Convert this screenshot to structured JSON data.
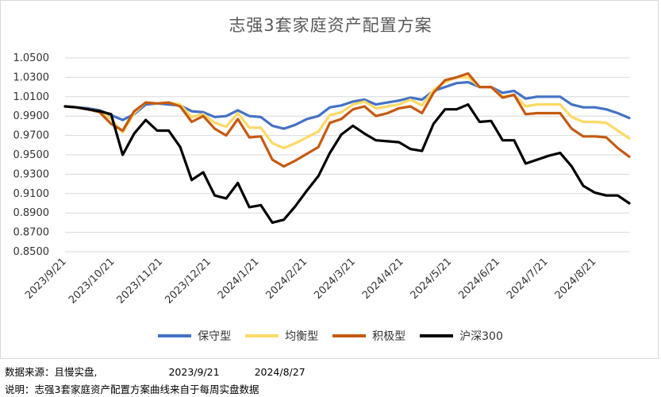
{
  "chart_data": {
    "type": "line",
    "title": "志强3套家庭资产配置方案",
    "ylim": [
      0.85,
      1.05
    ],
    "yticks": [
      "1.0500",
      "1.0300",
      "1.0100",
      "0.9900",
      "0.9700",
      "0.9500",
      "0.9300",
      "0.9100",
      "0.8900",
      "0.8700",
      "0.8500"
    ],
    "yticks_values": [
      1.05,
      1.03,
      1.01,
      0.99,
      0.97,
      0.95,
      0.93,
      0.91,
      0.89,
      0.87,
      0.85
    ],
    "xticks": [
      "2023/9/21",
      "2023/10/21",
      "2023/11/21",
      "2023/12/21",
      "2024/1/21",
      "2024/2/21",
      "2024/3/21",
      "2024/4/21",
      "2024/5/21",
      "2024/6/21",
      "2024/7/21",
      "2024/8/21"
    ],
    "grid": true,
    "legend_position": "bottom",
    "series": [
      {
        "name": "保守型",
        "color": "#4472C4",
        "values": [
          1.0,
          0.999,
          0.998,
          0.996,
          0.991,
          0.986,
          0.992,
          1.002,
          1.003,
          1.002,
          1.001,
          0.995,
          0.994,
          0.989,
          0.99,
          0.996,
          0.99,
          0.989,
          0.98,
          0.977,
          0.981,
          0.987,
          0.99,
          0.999,
          1.001,
          1.005,
          1.007,
          1.002,
          1.004,
          1.006,
          1.009,
          1.007,
          1.016,
          1.02,
          1.024,
          1.025,
          1.02,
          1.02,
          1.014,
          1.016,
          1.008,
          1.01,
          1.01,
          1.01,
          1.002,
          0.999,
          0.999,
          0.997,
          0.993,
          0.988
        ]
      },
      {
        "name": "均衡型",
        "color": "#FFD966",
        "values": [
          1.0,
          0.999,
          0.997,
          0.995,
          0.987,
          0.973,
          0.993,
          1.004,
          1.003,
          1.004,
          1.002,
          0.989,
          0.992,
          0.983,
          0.979,
          0.993,
          0.978,
          0.978,
          0.962,
          0.957,
          0.962,
          0.968,
          0.974,
          0.991,
          0.994,
          1.002,
          1.005,
          0.998,
          1.0,
          1.002,
          1.007,
          1.001,
          1.017,
          1.025,
          1.03,
          1.03,
          1.02,
          1.02,
          1.01,
          1.012,
          1.0,
          1.002,
          1.002,
          1.002,
          0.989,
          0.984,
          0.984,
          0.983,
          0.975,
          0.967
        ]
      },
      {
        "name": "积极型",
        "color": "#C55A11",
        "values": [
          1.0,
          0.999,
          0.997,
          0.994,
          0.982,
          0.975,
          0.995,
          1.004,
          1.003,
          1.004,
          1.0,
          0.984,
          0.99,
          0.977,
          0.97,
          0.987,
          0.968,
          0.969,
          0.945,
          0.938,
          0.944,
          0.951,
          0.958,
          0.983,
          0.987,
          0.997,
          1.0,
          0.99,
          0.993,
          0.998,
          1.0,
          0.993,
          1.014,
          1.027,
          1.03,
          1.034,
          1.02,
          1.02,
          1.009,
          1.012,
          0.992,
          0.993,
          0.993,
          0.993,
          0.977,
          0.969,
          0.969,
          0.968,
          0.957,
          0.948
        ]
      },
      {
        "name": "沪深300",
        "color": "#000000",
        "values": [
          1.0,
          0.999,
          0.997,
          0.995,
          0.992,
          0.95,
          0.972,
          0.986,
          0.975,
          0.975,
          0.958,
          0.924,
          0.932,
          0.908,
          0.905,
          0.921,
          0.896,
          0.898,
          0.88,
          0.883,
          0.897,
          0.913,
          0.928,
          0.952,
          0.971,
          0.98,
          0.972,
          0.965,
          0.964,
          0.963,
          0.956,
          0.954,
          0.982,
          0.997,
          0.997,
          1.002,
          0.984,
          0.985,
          0.965,
          0.965,
          0.941,
          0.945,
          0.949,
          0.952,
          0.938,
          0.918,
          0.911,
          0.908,
          0.908,
          0.9
        ]
      }
    ]
  },
  "footer": {
    "source_label": "数据来源：",
    "source_value": "且慢实盘,",
    "start_date": "2023/9/21",
    "end_date": "2024/8/27",
    "note": "说明：志强3套家庭资产配置方案曲线来自于每周实盘数据"
  }
}
